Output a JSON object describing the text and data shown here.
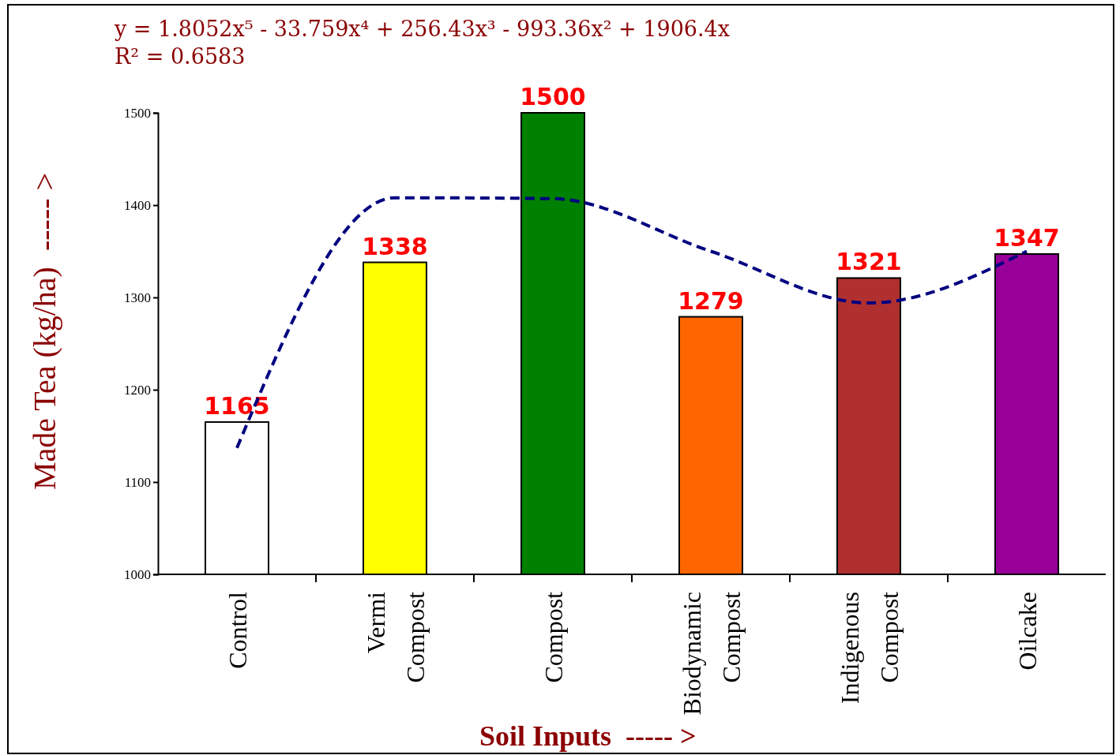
{
  "chart_data": {
    "type": "bar",
    "xlabel": "Soil Inputs  ----- >",
    "ylabel": "Made Tea (kg/ha)  ----- >",
    "annotations": [
      "y = 1.8052x⁵  - 33.759x⁴  + 256.43x³  - 993.36x²  + 1906.4x",
      "R² = 0.6583"
    ],
    "categories": [
      "Control",
      "Vermi Compost",
      "Compost",
      "Biodynamic Compost",
      "Indigenous Compost",
      "Oilcake"
    ],
    "series": [
      {
        "values": [
          1165,
          1338,
          1500,
          1279,
          1321,
          1347
        ],
        "value_labels": [
          "1165",
          "1338",
          "1500",
          "1279",
          "1321",
          "1347"
        ],
        "colors": [
          "#ffffff",
          "#ffff00",
          "#008000",
          "#ff6600",
          "#b03030",
          "#990099"
        ]
      },
      {
        "type": "line",
        "values": [
          1137,
          1408,
          1407,
          1350,
          1294,
          1350
        ],
        "color": "#000080",
        "line_style": "dashed"
      }
    ],
    "ylim": [
      1000,
      1500
    ],
    "yticks": [
      1000,
      1100,
      1200,
      1300,
      1400,
      1500
    ],
    "grid": false,
    "marker": "none"
  }
}
